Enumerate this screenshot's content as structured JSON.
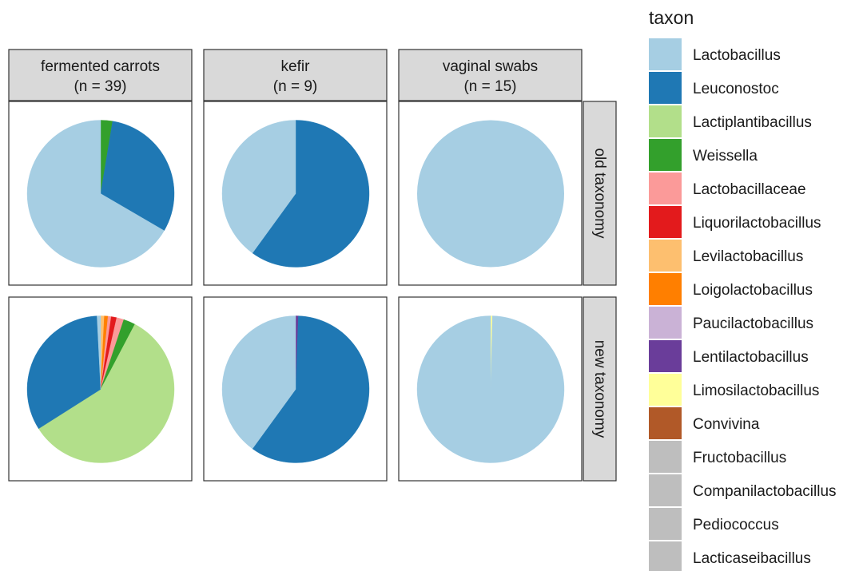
{
  "chart_data": {
    "type": "pie",
    "legend_title": "taxon",
    "legend_position": "right",
    "columns": [
      {
        "label": "fermented carrots",
        "n_label": "(n = 39)"
      },
      {
        "label": "kefir",
        "n_label": "(n = 9)"
      },
      {
        "label": "vaginal swabs",
        "n_label": "(n = 15)"
      }
    ],
    "rows": [
      {
        "label": "old taxonomy"
      },
      {
        "label": "new taxonomy"
      }
    ],
    "taxa": [
      {
        "name": "Lactobacillus",
        "color": "#a6cee3"
      },
      {
        "name": "Leuconostoc",
        "color": "#1f78b4"
      },
      {
        "name": "Lactiplantibacillus",
        "color": "#b2df8a"
      },
      {
        "name": "Weissella",
        "color": "#33a02c"
      },
      {
        "name": "Lactobacillaceae",
        "color": "#fb9a99"
      },
      {
        "name": "Liquorilactobacillus",
        "color": "#e31a1c"
      },
      {
        "name": "Levilactobacillus",
        "color": "#fdbf6f"
      },
      {
        "name": "Loigolactobacillus",
        "color": "#ff7f00"
      },
      {
        "name": "Paucilactobacillus",
        "color": "#cab2d6"
      },
      {
        "name": "Lentilactobacillus",
        "color": "#6a3d9a"
      },
      {
        "name": "Limosilactobacillus",
        "color": "#ffff99"
      },
      {
        "name": "Convivina",
        "color": "#b15928"
      },
      {
        "name": "Fructobacillus",
        "color": "#bebebe"
      },
      {
        "name": "Companilactobacillus",
        "color": "#bebebe"
      },
      {
        "name": "Pediococcus",
        "color": "#bebebe"
      },
      {
        "name": "Lacticaseibacillus",
        "color": "#bebebe"
      }
    ],
    "panels": [
      {
        "row": 0,
        "col": 0,
        "slices": [
          {
            "taxon": "Weissella",
            "value": 2.6
          },
          {
            "taxon": "Leuconostoc",
            "value": 30.8
          },
          {
            "taxon": "Lactobacillus",
            "value": 66.6
          }
        ]
      },
      {
        "row": 0,
        "col": 1,
        "slices": [
          {
            "taxon": "Leuconostoc",
            "value": 60.0
          },
          {
            "taxon": "Lactobacillus",
            "value": 40.0
          }
        ]
      },
      {
        "row": 0,
        "col": 2,
        "slices": [
          {
            "taxon": "Lactobacillus",
            "value": 100
          }
        ]
      },
      {
        "row": 1,
        "col": 0,
        "slices": [
          {
            "taxon": "Levilactobacillus",
            "value": 0.8
          },
          {
            "taxon": "Loigolactobacillus",
            "value": 0.8
          },
          {
            "taxon": "Lactobacillaceae",
            "value": 0.7
          },
          {
            "taxon": "Liquorilactobacillus",
            "value": 1.2
          },
          {
            "taxon": "Lactobacillaceae",
            "value": 1.6
          },
          {
            "taxon": "Weissella",
            "value": 2.6
          },
          {
            "taxon": "Lactiplantibacillus",
            "value": 58.3
          },
          {
            "taxon": "Leuconostoc",
            "value": 33.2
          },
          {
            "taxon": "Lactobacillus",
            "value": 0.8
          }
        ]
      },
      {
        "row": 1,
        "col": 1,
        "slices": [
          {
            "taxon": "Lentilactobacillus",
            "value": 0.6
          },
          {
            "taxon": "Leuconostoc",
            "value": 59.4
          },
          {
            "taxon": "Lactobacillus",
            "value": 40.0
          }
        ]
      },
      {
        "row": 1,
        "col": 2,
        "slices": [
          {
            "taxon": "Limosilactobacillus",
            "value": 0.4
          },
          {
            "taxon": "Lactobacillus",
            "value": 99.6
          }
        ]
      }
    ]
  }
}
